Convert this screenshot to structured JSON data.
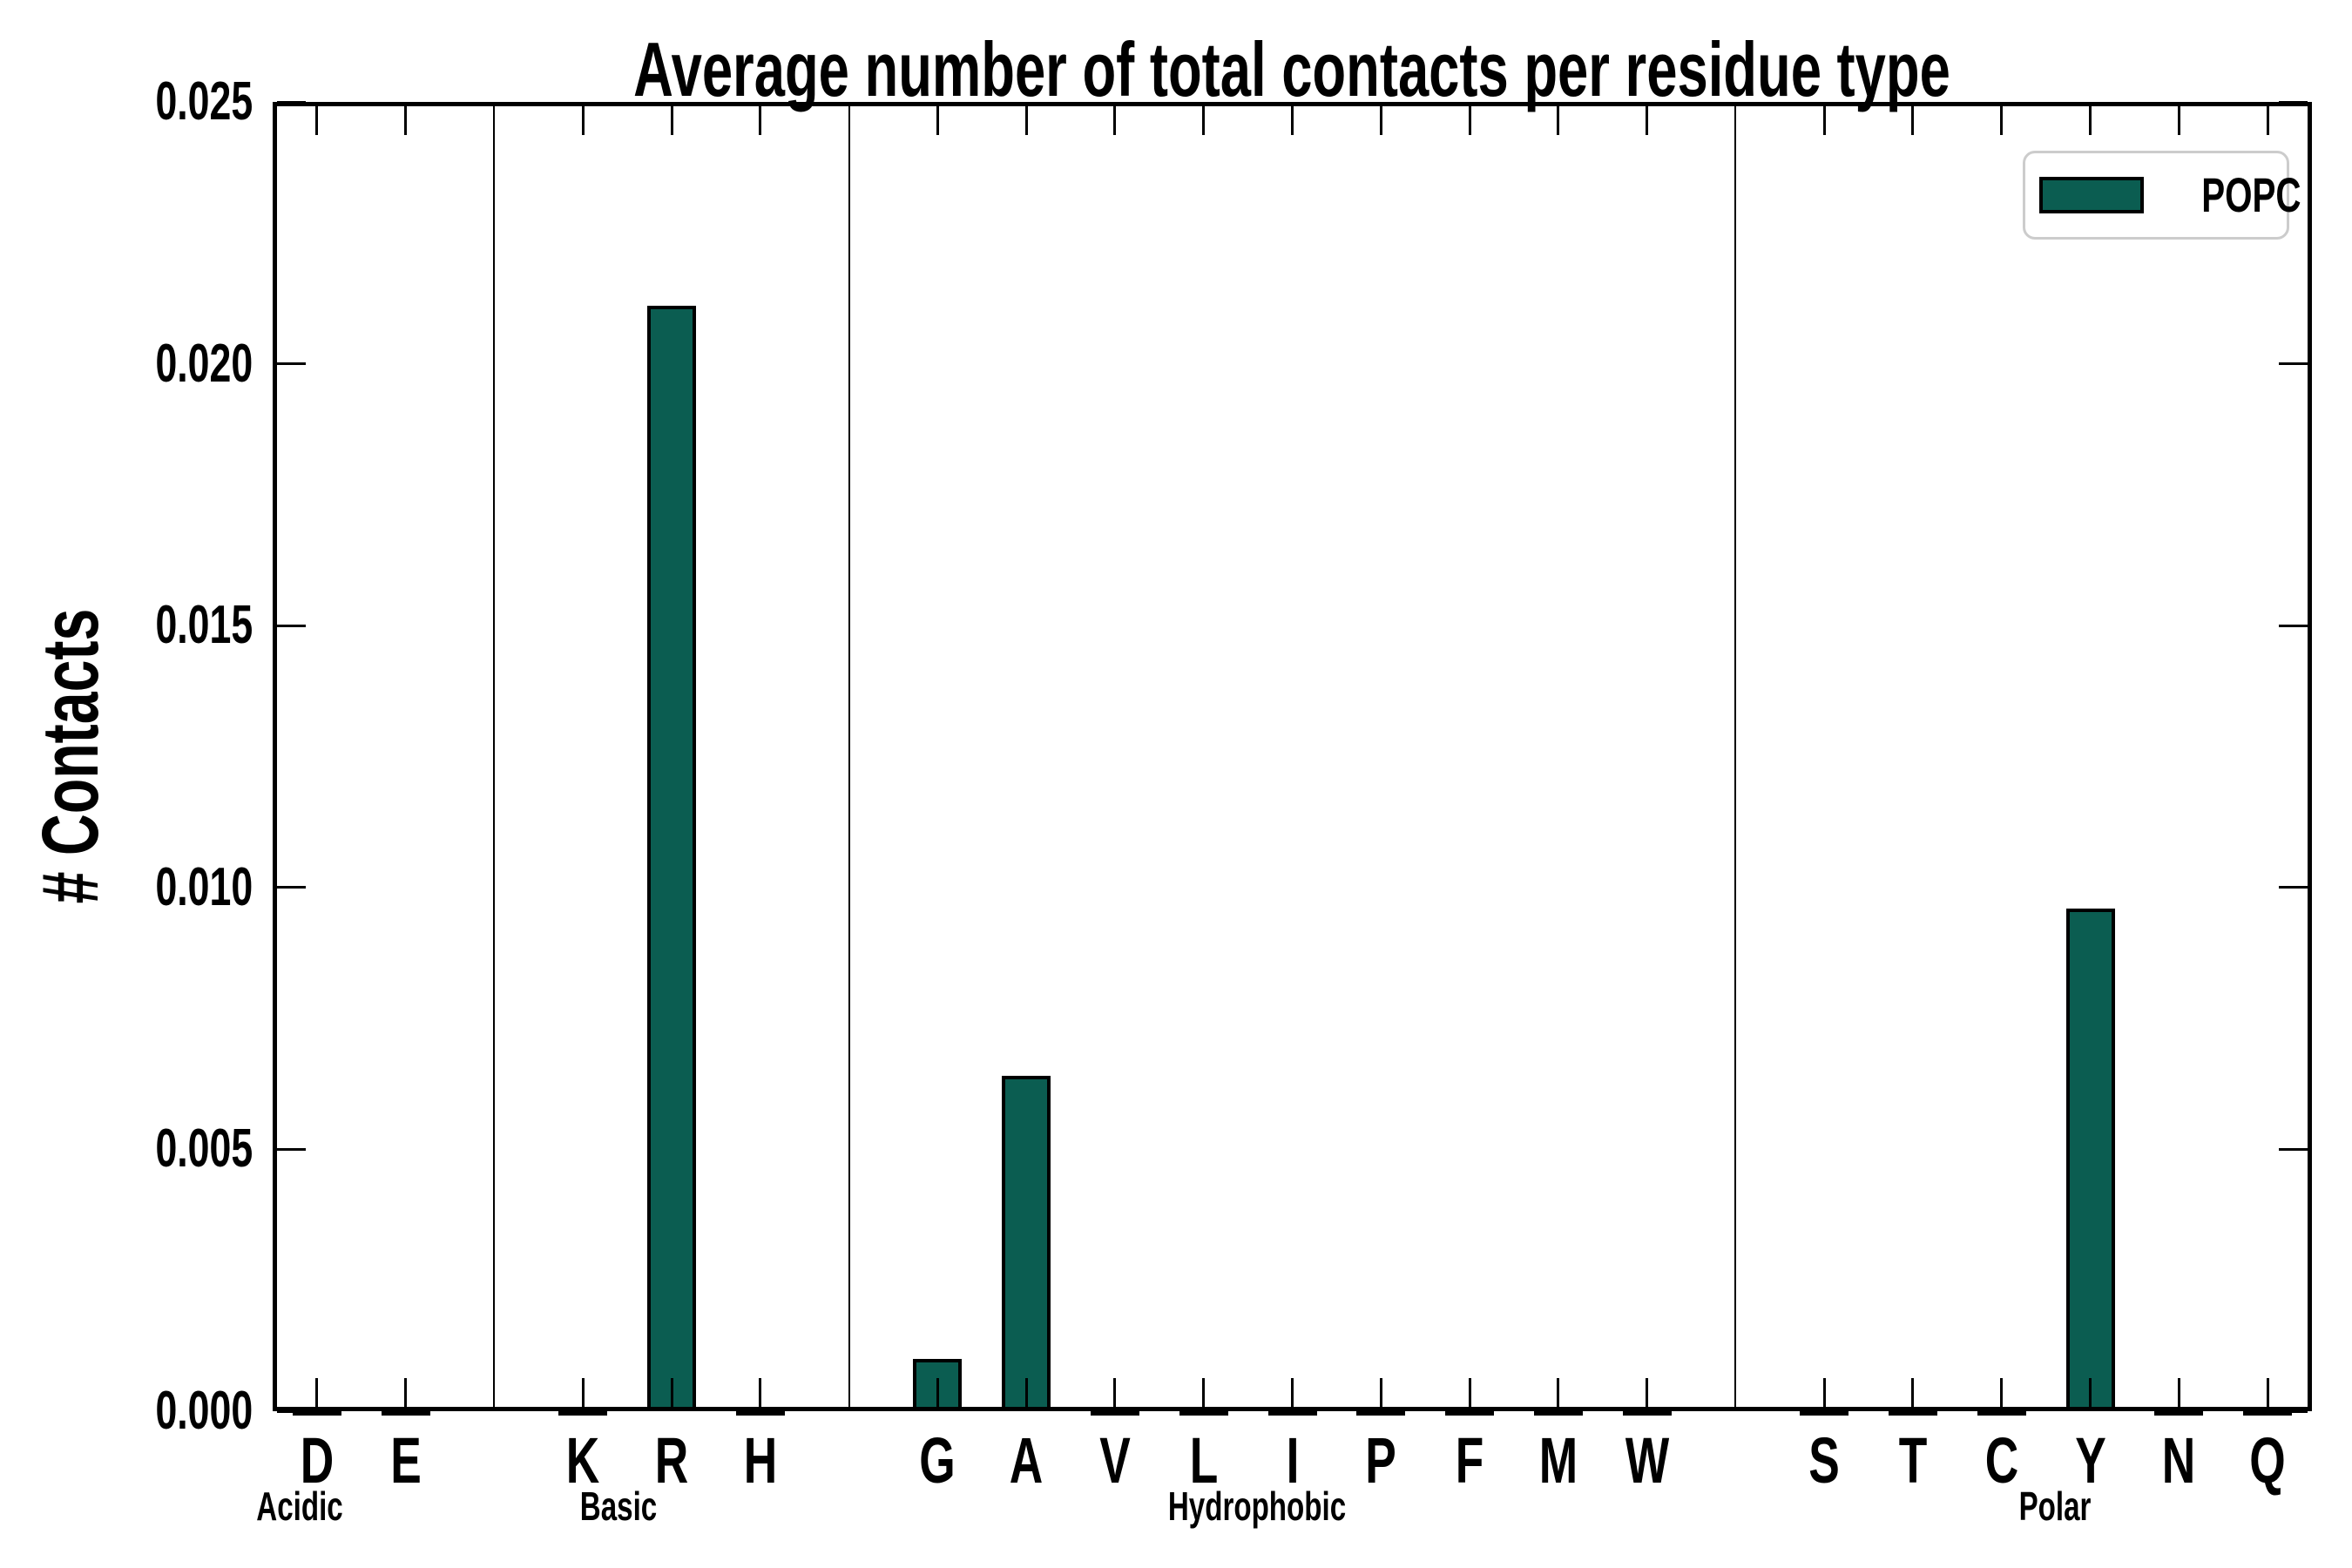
{
  "chart_data": {
    "type": "bar",
    "title": "Average number of total contacts per residue type",
    "ylabel": "# Contacts",
    "xlabel": "",
    "ylim": [
      0,
      0.025
    ],
    "xlim": [
      -0.5,
      22.5
    ],
    "yticks": [
      0,
      0.005,
      0.01,
      0.015,
      0.02,
      0.025
    ],
    "ytick_labels": [
      "0.000",
      "0.005",
      "0.010",
      "0.015",
      "0.020",
      "0.025"
    ],
    "grid": false,
    "legend": {
      "label": "POPC",
      "location": "upper right"
    },
    "style": {
      "bar_color": "#0b5d51",
      "bar_edge_color": "#000000",
      "background": "#ffffff",
      "legend_border_color": "#cccccc"
    },
    "categories": [
      "D",
      "E",
      "K",
      "R",
      "H",
      "G",
      "A",
      "V",
      "L",
      "I",
      "P",
      "F",
      "M",
      "W",
      "S",
      "T",
      "C",
      "Y",
      "N",
      "Q"
    ],
    "x_positions": [
      0,
      1,
      3,
      4,
      5,
      7,
      8,
      9,
      10,
      11,
      12,
      13,
      14,
      15,
      17,
      18,
      19,
      20,
      21,
      22
    ],
    "values": [
      5e-05,
      5e-05,
      5e-05,
      0.0211,
      5e-05,
      0.001,
      0.0064,
      5e-05,
      5e-05,
      5e-05,
      5e-05,
      5e-05,
      5e-05,
      5e-05,
      5e-05,
      5e-05,
      5e-05,
      0.0096,
      5e-05,
      5e-05
    ],
    "group_separators_x": [
      2,
      6,
      16
    ],
    "groups": [
      {
        "label": "Acidic",
        "residues": [
          "D",
          "E"
        ],
        "label_x": -0.2
      },
      {
        "label": "Basic",
        "residues": [
          "K",
          "R",
          "H"
        ],
        "label_x": 3.4
      },
      {
        "label": "Hydrophobic",
        "residues": [
          "G",
          "A",
          "V",
          "L",
          "I",
          "P",
          "F",
          "M",
          "W"
        ],
        "label_x": 10.6
      },
      {
        "label": "Polar",
        "residues": [
          "S",
          "T",
          "C",
          "Y",
          "N",
          "Q"
        ],
        "label_x": 19.6
      }
    ]
  }
}
